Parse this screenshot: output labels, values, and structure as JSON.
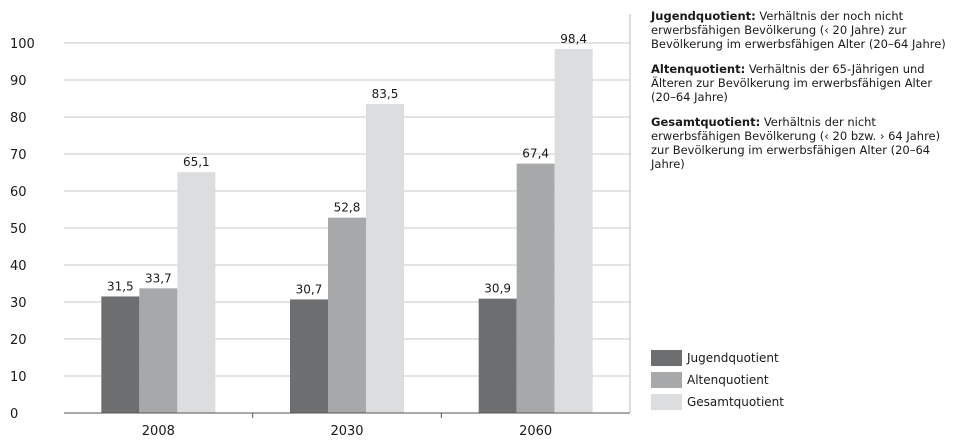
{
  "chart_data": {
    "type": "bar",
    "categories": [
      "2008",
      "2030",
      "2060"
    ],
    "series": [
      {
        "name": "Jugendquotient",
        "values": [
          31.5,
          30.7,
          30.9
        ],
        "labels": [
          "31,5",
          "30,7",
          "30,9"
        ],
        "color": "#6d6e70"
      },
      {
        "name": "Altenquotient",
        "values": [
          33.7,
          52.8,
          67.4
        ],
        "labels": [
          "33,7",
          "52,8",
          "67,4"
        ],
        "color": "#a7a8aa"
      },
      {
        "name": "Gesamtquotient",
        "values": [
          65.1,
          83.5,
          98.4
        ],
        "labels": [
          "65,1",
          "83,5",
          "98,4"
        ],
        "color": "#dcdddf"
      }
    ],
    "yticks": [
      "0",
      "10",
      "20",
      "30",
      "40",
      "50",
      "60",
      "70",
      "80",
      "90",
      "100"
    ],
    "ylim": [
      0,
      100
    ],
    "grid": true,
    "legend_position": "bottom-right"
  },
  "notes": [
    {
      "term": "Jugendquotient:",
      "text": "Verhältnis der noch nicht erwerbsfähigen Bevölkerung (‹ 20 Jahre) zur Bevölkerung im erwerbsfähigen Alter (20–64 Jahre)"
    },
    {
      "term": "Altenquotient:",
      "text": "Verhältnis der 65-Jährigen und Älteren zur Bevölkerung im erwerbsfähigen Alter (20–64 Jahre)"
    },
    {
      "term": "Gesamtquotient:",
      "text": "Verhältnis der nicht erwerbsfähigen Bevölkerung (‹ 20 bzw. › 64 Jahre) zur Bevölkerung im erwerbsfähigen Alter (20–64 Jahre)"
    }
  ],
  "legend": [
    {
      "label": "Jugendquotient",
      "color": "#6d6e70"
    },
    {
      "label": "Altenquotient",
      "color": "#a7a8aa"
    },
    {
      "label": "Gesamtquotient",
      "color": "#dcdddf"
    }
  ]
}
